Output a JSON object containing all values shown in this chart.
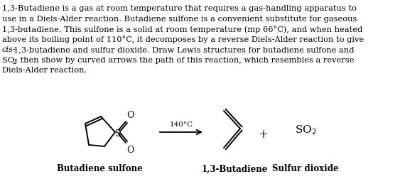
{
  "background_color": "#ffffff",
  "text_color": "#000000",
  "arrow_label": "140°C",
  "label_butadiene_sulfone": "Butadiene sulfone",
  "label_13butadiene": "1,3-Butadiene",
  "label_sulfur_dioxide": "Sulfur dioxide",
  "so2_label": "SO$_2$",
  "plus_label": "+"
}
